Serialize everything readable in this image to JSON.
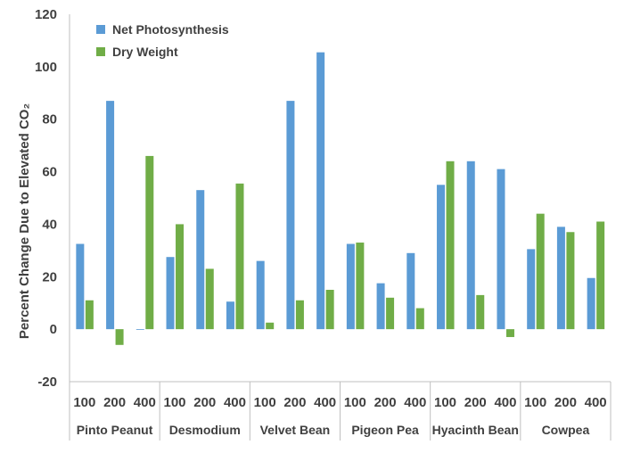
{
  "chart_data": {
    "type": "bar",
    "groups": [
      {
        "label": "Pinto Peanut",
        "subcategories": [
          "100",
          "200",
          "400"
        ]
      },
      {
        "label": "Desmodium",
        "subcategories": [
          "100",
          "200",
          "400"
        ]
      },
      {
        "label": "Velvet Bean",
        "subcategories": [
          "100",
          "200",
          "400"
        ]
      },
      {
        "label": "Pigeon Pea",
        "subcategories": [
          "100",
          "200",
          "400"
        ]
      },
      {
        "label": "Hyacinth Bean",
        "subcategories": [
          "100",
          "200",
          "400"
        ]
      },
      {
        "label": "Cowpea",
        "subcategories": [
          "100",
          "200",
          "400"
        ]
      }
    ],
    "series": [
      {
        "name": "Net Photosynthesis",
        "color": "#5b9bd5",
        "values": [
          32.5,
          87,
          0,
          27.5,
          53,
          10.5,
          26,
          87,
          105.5,
          32.5,
          17.5,
          29,
          55,
          64,
          61,
          30.5,
          39,
          19.5
        ]
      },
      {
        "name": "Dry Weight",
        "color": "#70ad47",
        "values": [
          11,
          -6,
          66,
          40,
          23,
          55.5,
          2.5,
          11,
          15,
          33,
          12,
          8,
          64,
          13,
          -3,
          44,
          37,
          41
        ]
      }
    ],
    "xlabel": "",
    "ylabel": "Percent Change Due to Elevated CO₂",
    "ylim": [
      -20,
      120
    ],
    "yticks": [
      "-20",
      "0",
      "20",
      "40",
      "60",
      "80",
      "100",
      "120"
    ],
    "legend": "top-left",
    "grid": false
  }
}
